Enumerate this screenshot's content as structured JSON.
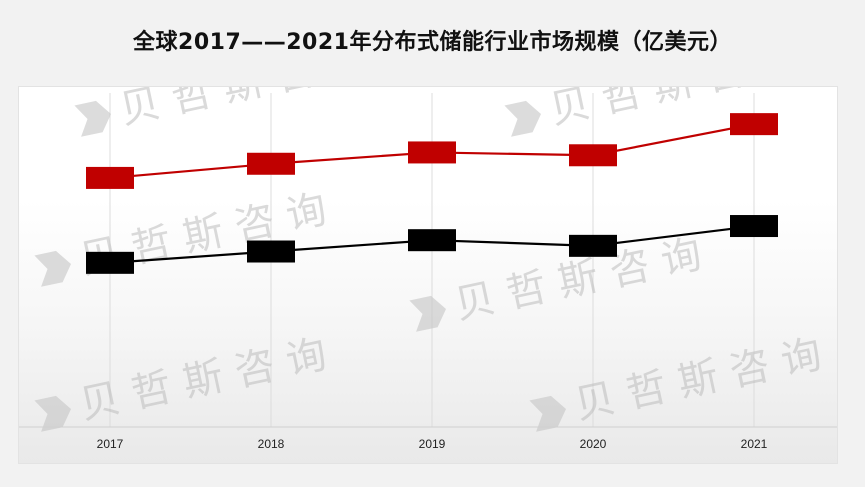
{
  "chart_data": {
    "type": "line",
    "title": "全球2017——2021年分布式储能行业市场规模（亿美元）",
    "categories": [
      "2017",
      "2018",
      "2019",
      "2020",
      "2021"
    ],
    "series": [
      {
        "color": "#c00000",
        "values": [
          44,
          49,
          53,
          52,
          63
        ]
      },
      {
        "color": "#000000",
        "values": [
          14,
          18,
          22,
          20,
          27
        ]
      }
    ],
    "ylim": [
      -44,
      74
    ],
    "grid": "vertical",
    "legend": "none"
  },
  "watermark": {
    "text": "贝 哲 斯 咨 询"
  }
}
